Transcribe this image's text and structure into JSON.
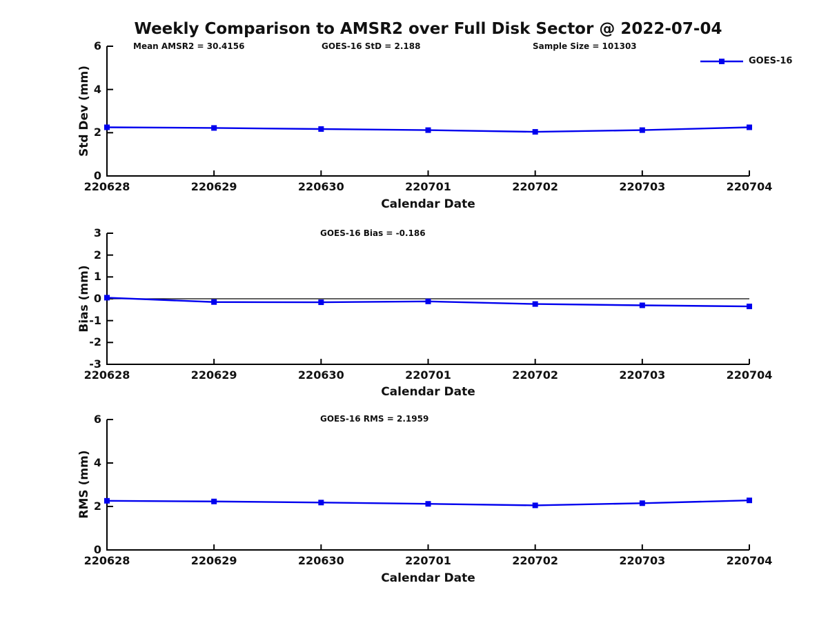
{
  "title": "Weekly Comparison to AMSR2 over Full Disk Sector @ 2022-07-04",
  "legend": {
    "label": "GOES-16",
    "marker": "square"
  },
  "colors": {
    "line": "#0000EE",
    "axis": "#000000",
    "text": "#111111",
    "background": "#FFFFFF"
  },
  "chart_data": [
    {
      "type": "line",
      "name": "std-dev-panel",
      "title": "",
      "annotations": [
        "Mean AMSR2 = 30.4156",
        "GOES-16 StD = 2.188",
        "Sample Size = 101303"
      ],
      "categories": [
        "220628",
        "220629",
        "220630",
        "220701",
        "220702",
        "220703",
        "220704"
      ],
      "series": [
        {
          "name": "GOES-16",
          "values": [
            2.25,
            2.22,
            2.17,
            2.12,
            2.04,
            2.12,
            2.25
          ]
        }
      ],
      "xlabel": "Calendar Date",
      "ylabel": "Std Dev (mm)",
      "ylim": [
        0,
        6
      ],
      "yticks": [
        0,
        2,
        4,
        6
      ],
      "grid": false,
      "zero_line": false,
      "legend_position": "top-right-outside"
    },
    {
      "type": "line",
      "name": "bias-panel",
      "title": "",
      "annotations": [
        "GOES-16 Bias  = -0.186"
      ],
      "categories": [
        "220628",
        "220629",
        "220630",
        "220701",
        "220702",
        "220703",
        "220704"
      ],
      "series": [
        {
          "name": "GOES-16",
          "values": [
            0.05,
            -0.15,
            -0.16,
            -0.12,
            -0.24,
            -0.3,
            -0.35
          ]
        }
      ],
      "xlabel": "Calendar Date",
      "ylabel": "Bias (mm)",
      "ylim": [
        -3,
        3
      ],
      "yticks": [
        -3,
        -2,
        -1,
        0,
        1,
        2,
        3
      ],
      "grid": false,
      "zero_line": true,
      "legend_position": "none"
    },
    {
      "type": "line",
      "name": "rms-panel",
      "title": "",
      "annotations": [
        "GOES-16 RMS = 2.1959"
      ],
      "categories": [
        "220628",
        "220629",
        "220630",
        "220701",
        "220702",
        "220703",
        "220704"
      ],
      "series": [
        {
          "name": "GOES-16",
          "values": [
            2.26,
            2.23,
            2.18,
            2.12,
            2.05,
            2.15,
            2.28
          ]
        }
      ],
      "xlabel": "Calendar Date",
      "ylabel": "RMS (mm)",
      "ylim": [
        0,
        6
      ],
      "yticks": [
        0,
        2,
        4,
        6
      ],
      "grid": false,
      "zero_line": false,
      "legend_position": "none"
    }
  ]
}
